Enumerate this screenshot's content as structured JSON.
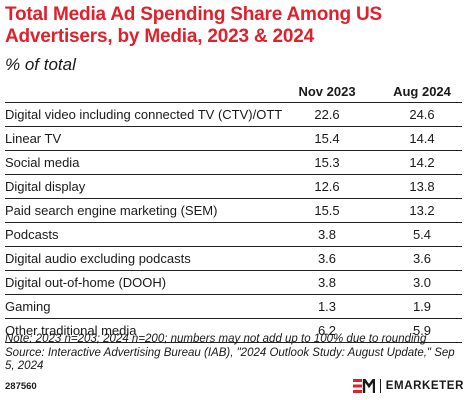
{
  "title": "Total Media Ad Spending Share Among US Advertisers, by Media, 2023 & 2024",
  "subtitle": "% of total",
  "columns": [
    "Nov 2023",
    "Aug 2024"
  ],
  "rows": [
    {
      "label": "Digital video including connected TV (CTV)/OTT",
      "nov2023": "22.6",
      "aug2024": "24.6"
    },
    {
      "label": "Linear TV",
      "nov2023": "15.4",
      "aug2024": "14.4"
    },
    {
      "label": "Social media",
      "nov2023": "15.3",
      "aug2024": "14.2"
    },
    {
      "label": "Digital display",
      "nov2023": "12.6",
      "aug2024": "13.8"
    },
    {
      "label": "Paid search engine marketing (SEM)",
      "nov2023": "15.5",
      "aug2024": "13.2"
    },
    {
      "label": "Podcasts",
      "nov2023": "3.8",
      "aug2024": "5.4"
    },
    {
      "label": "Digital audio excluding podcasts",
      "nov2023": "3.6",
      "aug2024": "3.6"
    },
    {
      "label": "Digital out-of-home (DOOH)",
      "nov2023": "3.8",
      "aug2024": "3.0"
    },
    {
      "label": "Gaming",
      "nov2023": "1.3",
      "aug2024": "1.9"
    },
    {
      "label": "Other traditional media",
      "nov2023": "6.2",
      "aug2024": "5.9"
    }
  ],
  "note": "Note: 2023 n=203; 2024 n=200; numbers may not add up to 100% due to rounding",
  "source": "Source: Interactive Advertising Bureau (IAB), \"2024 Outlook Study: August Update,\" Sep 5, 2024",
  "chart_id": "287560",
  "brand": {
    "name": "EMARKETER",
    "accent": "#e0202b",
    "logo_icon": "em-logo-icon"
  },
  "chart_data": {
    "type": "table",
    "title": "Total Media Ad Spending Share Among US Advertisers, by Media, 2023 & 2024",
    "subtitle": "% of total",
    "categories": [
      "Digital video including connected TV (CTV)/OTT",
      "Linear TV",
      "Social media",
      "Digital display",
      "Paid search engine marketing (SEM)",
      "Podcasts",
      "Digital audio excluding podcasts",
      "Digital out-of-home (DOOH)",
      "Gaming",
      "Other traditional media"
    ],
    "series": [
      {
        "name": "Nov 2023",
        "values": [
          22.6,
          15.4,
          15.3,
          12.6,
          15.5,
          3.8,
          3.6,
          3.8,
          1.3,
          6.2
        ]
      },
      {
        "name": "Aug 2024",
        "values": [
          24.6,
          14.4,
          14.2,
          13.8,
          13.2,
          5.4,
          3.6,
          3.0,
          1.9,
          5.9
        ]
      }
    ]
  }
}
